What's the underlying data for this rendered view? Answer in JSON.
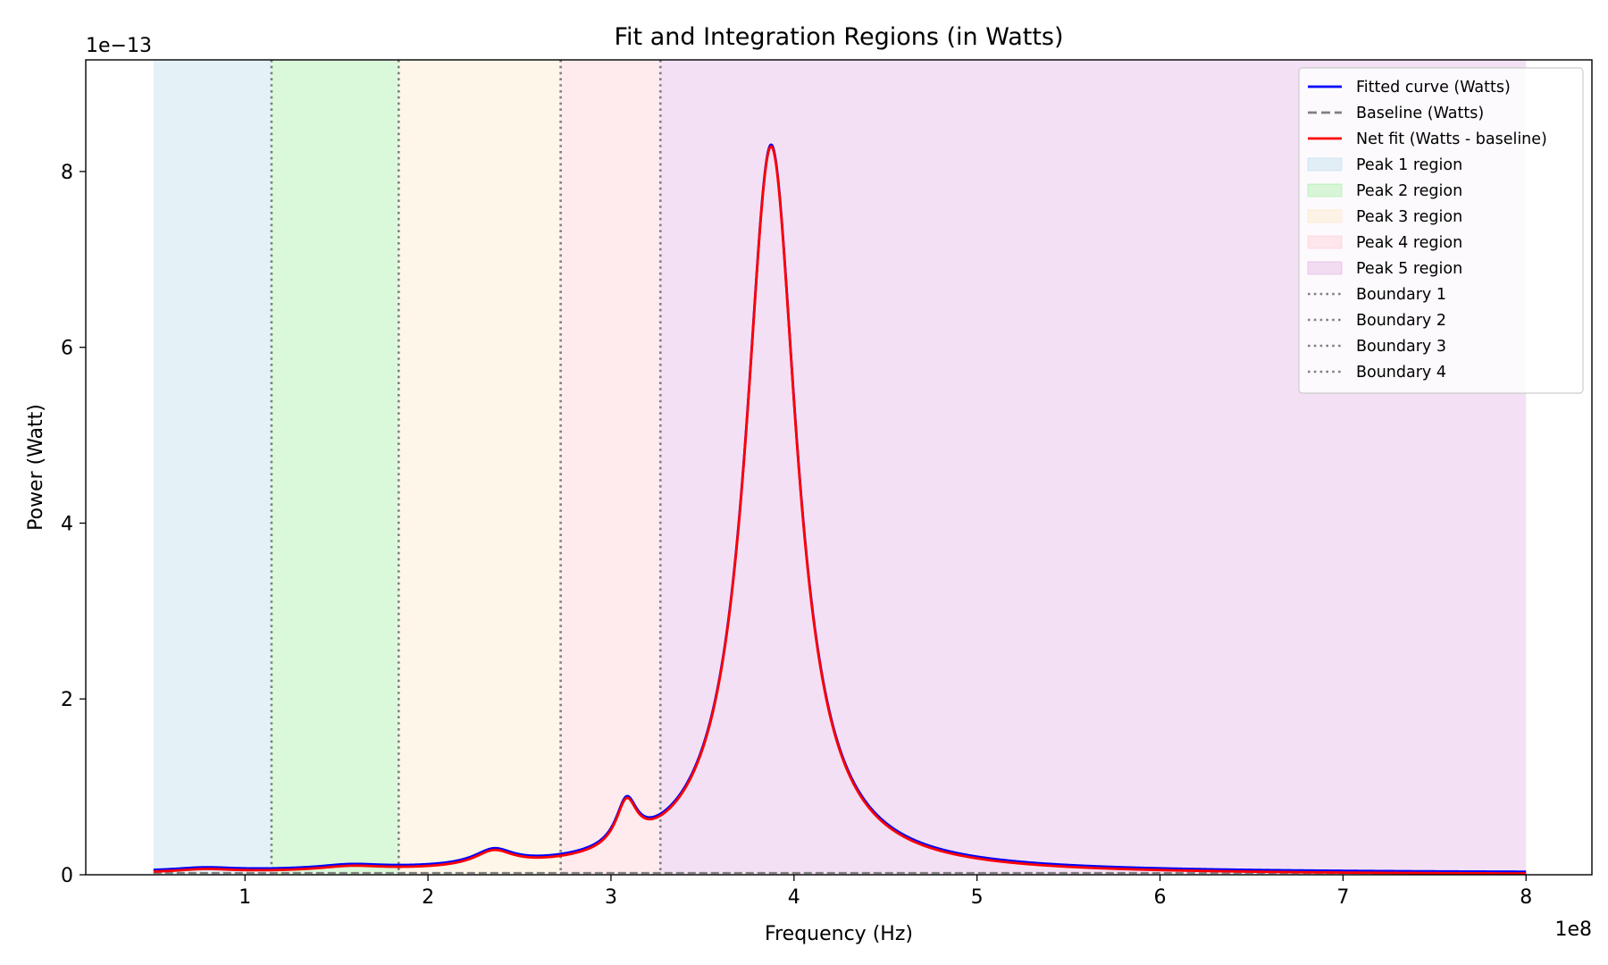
{
  "chart_data": {
    "type": "line",
    "title": "Fit and Integration Regions (in Watts)",
    "xlabel": "Frequency (Hz)",
    "ylabel": "Power (Watt)",
    "x_offset_label": "1e8",
    "y_offset_label": "1e−13",
    "xlim": [
      0.13,
      8.36
    ],
    "ylim": [
      0,
      9.27
    ],
    "x_ticks": [
      1,
      2,
      3,
      4,
      5,
      6,
      7,
      8
    ],
    "y_ticks": [
      0,
      2,
      4,
      6,
      8
    ],
    "x_tick_labels": [
      "1",
      "2",
      "3",
      "4",
      "5",
      "6",
      "7",
      "8"
    ],
    "y_tick_labels": [
      "0",
      "2",
      "4",
      "6",
      "8"
    ],
    "grid": false,
    "legend_position": "top-right",
    "regions": [
      {
        "name": "Peak 1 region",
        "x0": 0.5,
        "x1": 1.145,
        "color": "#add8e6"
      },
      {
        "name": "Peak 2 region",
        "x0": 1.145,
        "x1": 1.84,
        "color": "#90ee90"
      },
      {
        "name": "Peak 3 region",
        "x0": 1.84,
        "x1": 2.725,
        "color": "#fde4b8"
      },
      {
        "name": "Peak 4 region",
        "x0": 2.725,
        "x1": 3.27,
        "color": "#ffc0cb"
      },
      {
        "name": "Peak 5 region",
        "x0": 3.27,
        "x1": 8.0,
        "color": "#dda0dd"
      }
    ],
    "boundaries": [
      {
        "name": "Boundary 1",
        "x": 1.145
      },
      {
        "name": "Boundary 2",
        "x": 1.84
      },
      {
        "name": "Boundary 3",
        "x": 2.725
      },
      {
        "name": "Boundary 4",
        "x": 3.27
      }
    ],
    "baseline_value": 0.02,
    "peaks": [
      {
        "center": 0.78,
        "width": 0.2,
        "amplitude": 0.035
      },
      {
        "center": 1.58,
        "width": 0.22,
        "amplitude": 0.05
      },
      {
        "center": 2.36,
        "width": 0.13,
        "amplitude": 0.17
      },
      {
        "center": 3.085,
        "width": 0.07,
        "amplitude": 0.5
      },
      {
        "center": 3.875,
        "width": 0.17,
        "amplitude": 8.28
      }
    ],
    "series": [
      {
        "name": "Fitted curve (Watts)",
        "color": "#0000ff",
        "style": "solid",
        "x_range": [
          0.5,
          8.0
        ],
        "y_peak": 8.43
      },
      {
        "name": "Baseline (Watts)",
        "color": "#808080",
        "style": "dashed",
        "x_range": [
          0.5,
          8.0
        ],
        "y": 0.02
      },
      {
        "name": "Net fit (Watts - baseline)",
        "color": "#ff0000",
        "style": "solid",
        "x_range": [
          0.5,
          8.0
        ],
        "y_peak": 8.41
      }
    ]
  },
  "legend": {
    "entries": [
      {
        "label": "Fitted curve (Watts)",
        "kind": "line",
        "color": "#0000ff",
        "dash": "solid"
      },
      {
        "label": "Baseline (Watts)",
        "kind": "line",
        "color": "#808080",
        "dash": "dashed"
      },
      {
        "label": "Net fit (Watts - baseline)",
        "kind": "line",
        "color": "#ff0000",
        "dash": "solid"
      },
      {
        "label": "Peak 1 region",
        "kind": "patch",
        "color": "#add8e6"
      },
      {
        "label": "Peak 2 region",
        "kind": "patch",
        "color": "#90ee90"
      },
      {
        "label": "Peak 3 region",
        "kind": "patch",
        "color": "#fde4b8"
      },
      {
        "label": "Peak 4 region",
        "kind": "patch",
        "color": "#ffc0cb"
      },
      {
        "label": "Peak 5 region",
        "kind": "patch",
        "color": "#dda0dd"
      },
      {
        "label": "Boundary 1",
        "kind": "line",
        "color": "#808080",
        "dash": "dotted"
      },
      {
        "label": "Boundary 2",
        "kind": "line",
        "color": "#808080",
        "dash": "dotted"
      },
      {
        "label": "Boundary 3",
        "kind": "line",
        "color": "#808080",
        "dash": "dotted"
      },
      {
        "label": "Boundary 4",
        "kind": "line",
        "color": "#808080",
        "dash": "dotted"
      }
    ]
  }
}
